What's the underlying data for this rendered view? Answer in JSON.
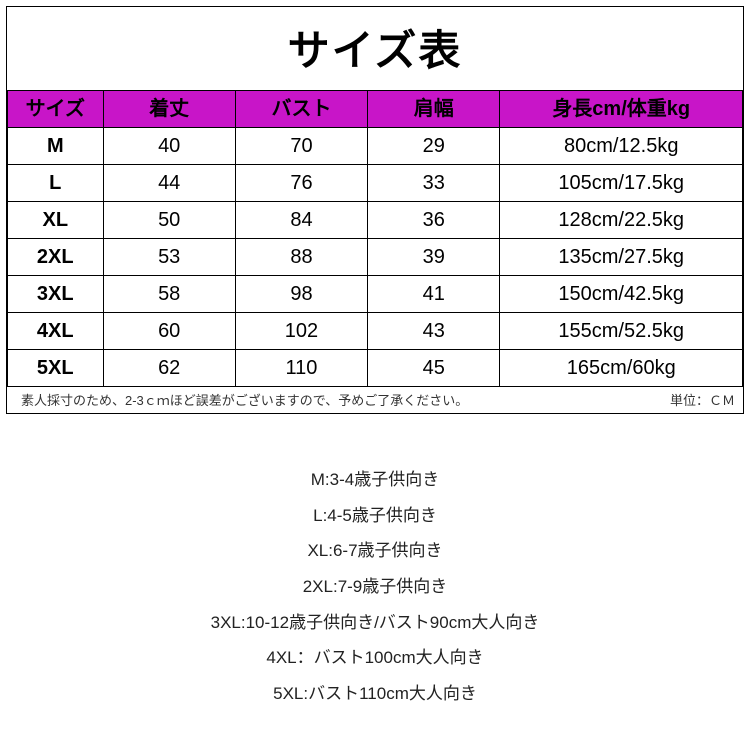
{
  "chart": {
    "title": "サイズ表",
    "header_bg": "#c815c8",
    "border_color": "#000000",
    "columns": [
      "サイズ",
      "着丈",
      "バスト",
      "肩幅",
      "身長cm/体重kg"
    ],
    "rows": [
      [
        "M",
        "40",
        "70",
        "29",
        "80cm/12.5kg"
      ],
      [
        "L",
        "44",
        "76",
        "33",
        "105cm/17.5kg"
      ],
      [
        "XL",
        "50",
        "84",
        "36",
        "128cm/22.5kg"
      ],
      [
        "2XL",
        "53",
        "88",
        "39",
        "135cm/27.5kg"
      ],
      [
        "3XL",
        "58",
        "98",
        "41",
        "150cm/42.5kg"
      ],
      [
        "4XL",
        "60",
        "102",
        "43",
        "155cm/52.5kg"
      ],
      [
        "5XL",
        "62",
        "110",
        "45",
        "165cm/60kg"
      ]
    ],
    "footnote_left": "素人採寸のため、2-3ｃｍほど誤差がございますので、予めご了承ください。",
    "footnote_right": "単位：ＣＭ"
  },
  "recommendations": [
    "M:3-4歳子供向き",
    "L:4-5歳子供向き",
    "XL:6-7歳子供向き",
    "2XL:7-9歳子供向き",
    "3XL:10-12歳子供向き/バスト90cm大人向き",
    "4XL：バスト100cm大人向き",
    "5XL:バスト110cm大人向き"
  ]
}
